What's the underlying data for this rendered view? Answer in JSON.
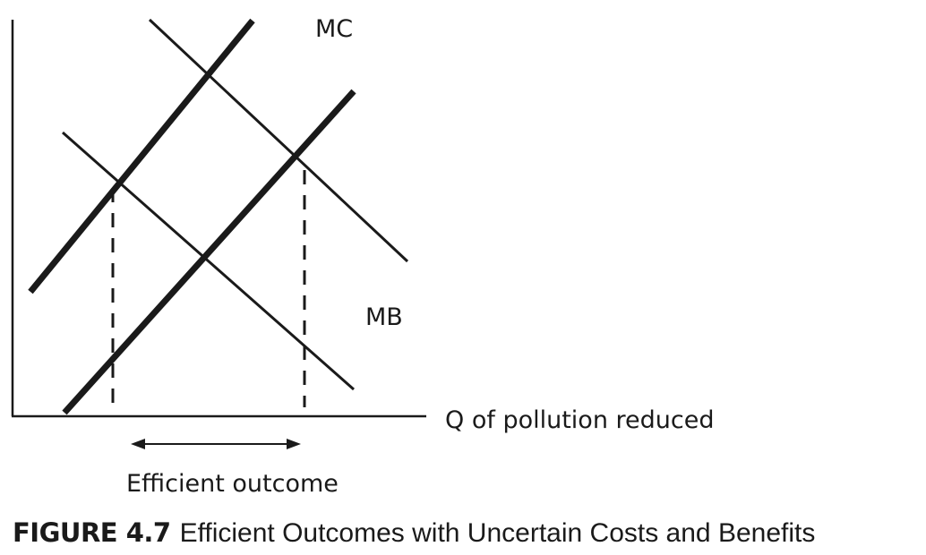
{
  "labels": {
    "mc": "MC",
    "mb": "MB",
    "x_axis": "Q of pollution reduced",
    "range": "Efficient outcome"
  },
  "caption": {
    "number": "FIGURE 4.7",
    "title": "Efficient Outcomes with Uncertain Costs and Benefits"
  },
  "colors": {
    "ink": "#1a1a1a"
  }
}
